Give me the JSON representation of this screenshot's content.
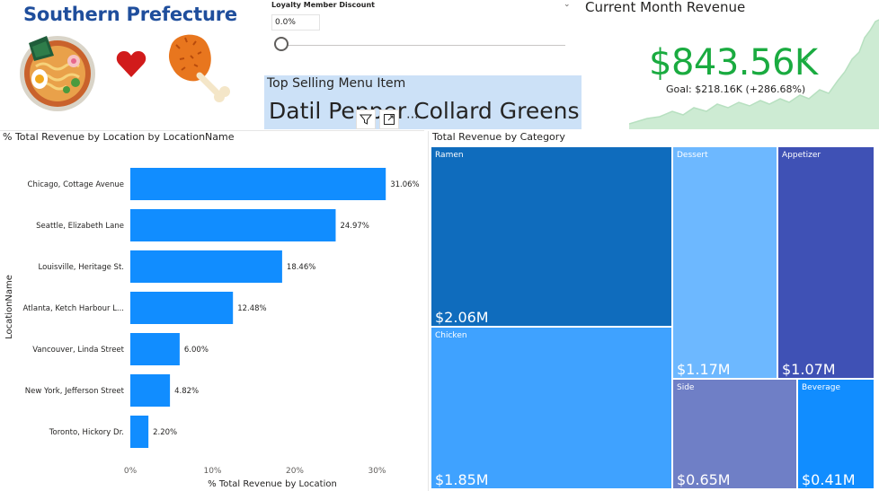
{
  "brand": {
    "title": "Southern Prefecture"
  },
  "slicer": {
    "title": "Loyalty Member Discount",
    "value": "0.0%"
  },
  "kpi": {
    "title": "Current Month Revenue",
    "value": "$843.56K",
    "goal": "Goal: $218.16K (+286.68%)",
    "color": "#1aab40"
  },
  "top_selling": {
    "title": "Top Selling Menu Item",
    "value": "Datil Pepper Collard Greens"
  },
  "chart_data": [
    {
      "type": "bar",
      "orientation": "horizontal",
      "title": "% Total Revenue by Location by LocationName",
      "xlabel": "% Total Revenue by Location",
      "ylabel": "LocationName",
      "categories": [
        "Chicago, Cottage Avenue",
        "Seattle, Elizabeth Lane",
        "Louisville, Heritage St.",
        "Atlanta, Ketch Harbour L...",
        "Vancouver, Linda Street",
        "New York, Jefferson Street",
        "Toronto, Hickory Dr."
      ],
      "values": [
        31.06,
        24.97,
        18.46,
        12.48,
        6.0,
        4.82,
        2.2
      ],
      "labels": [
        "31.06%",
        "24.97%",
        "18.46%",
        "12.48%",
        "6.00%",
        "4.82%",
        "2.20%"
      ],
      "xticks": [
        "0%",
        "10%",
        "20%",
        "30%"
      ],
      "xtick_values": [
        0,
        10,
        20,
        30
      ],
      "xlim": [
        0,
        33
      ],
      "color": "#118dff"
    },
    {
      "type": "treemap",
      "title": "Total Revenue by Category",
      "items": [
        {
          "name": "Ramen",
          "value": "$2.06M",
          "color": "#0f6cbd"
        },
        {
          "name": "Chicken",
          "value": "$1.85M",
          "color": "#3fa2ff"
        },
        {
          "name": "Dessert",
          "value": "$1.17M",
          "color": "#6db8ff"
        },
        {
          "name": "Appetizer",
          "value": "$1.07M",
          "color": "#3f51b5"
        },
        {
          "name": "Side",
          "value": "$0.65M",
          "color": "#6f7fc6"
        },
        {
          "name": "Beverage",
          "value": "$0.41M",
          "color": "#118dff"
        }
      ]
    }
  ]
}
